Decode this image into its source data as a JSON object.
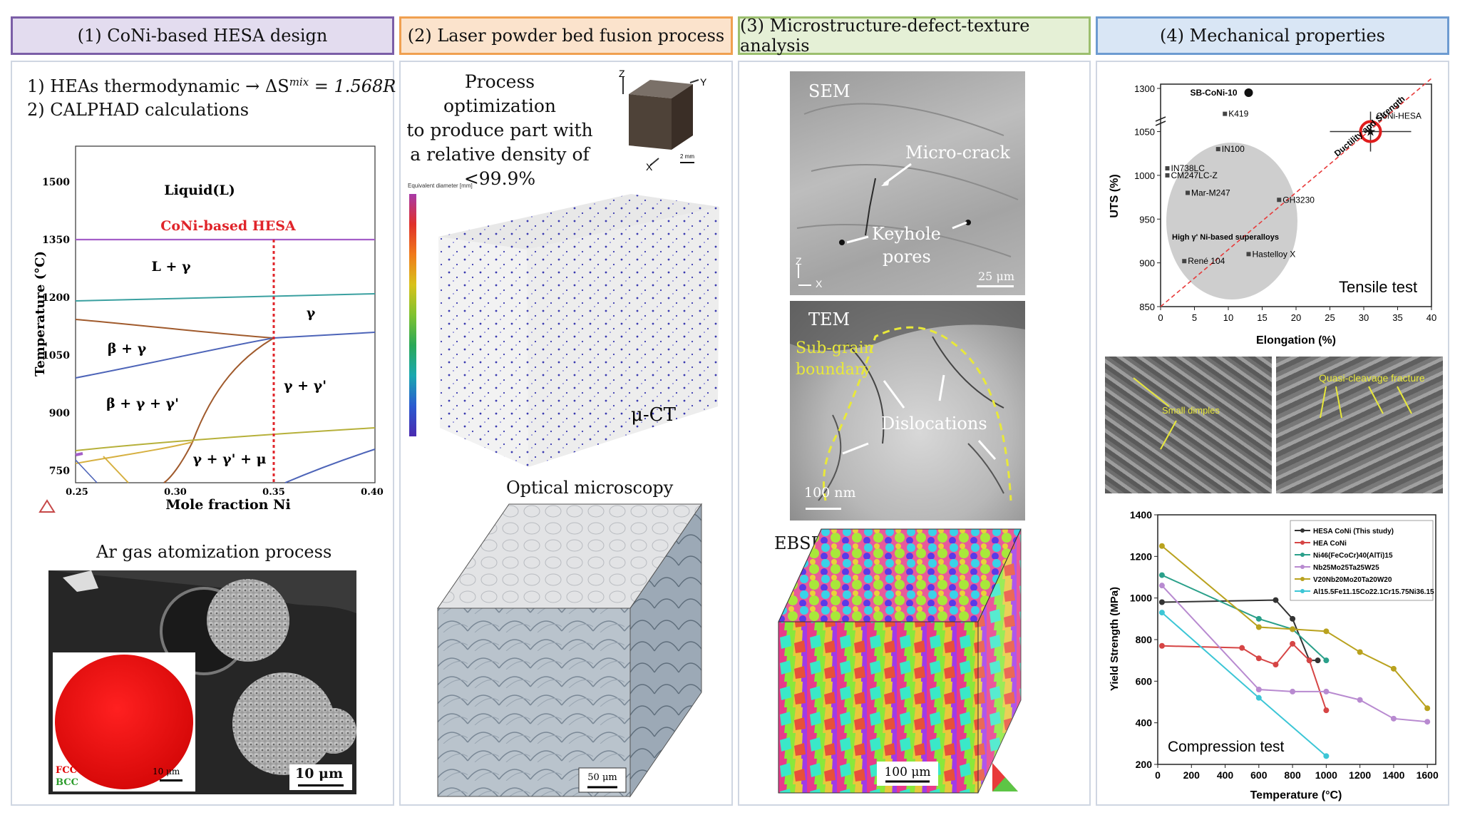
{
  "headers": {
    "h1": "(1) CoNi-based HESA design",
    "h2": "(2) Laser powder bed fusion process",
    "h3": "(3) Microstructure-defect-texture analysis",
    "h4": "(4) Mechanical properties"
  },
  "colors": {
    "h1": "#7b5ea7",
    "h1_bg": "#e3dcef",
    "h2": "#f0a050",
    "h2_bg": "#fbe3cc",
    "h3": "#9cbf6e",
    "h3_bg": "#e5f0d6",
    "h4": "#6d9bd1",
    "h4_bg": "#d9e6f5"
  },
  "panel1": {
    "line1": "1) HEAs thermodynamic → ΔS",
    "line1_sup": "mix",
    "line1_tail": " = 1.568R",
    "line2": "2) CALPHAD calculations",
    "phase": {
      "liquid": "Liquid(L)",
      "hesa": "CoNi-based HESA",
      "l_gamma": "L + γ",
      "gamma": "γ",
      "beta_gamma": "β + γ",
      "beta_gamma_gp": "β + γ + γ'",
      "gamma_gp": "γ + γ'",
      "gamma_gp_mu": "γ + γ' + μ",
      "ylabel": "Temperature (°C)",
      "xlabel": "Mole fraction Ni",
      "yticks": [
        "1500",
        "1350",
        "1200",
        "1050",
        "900",
        "750"
      ],
      "xticks": [
        "0.25",
        "0.30",
        "0.35",
        "0.40"
      ]
    },
    "atom_title": "Ar gas atomization process",
    "fcc": "FCC",
    "bcc": "BCC",
    "scale_inset": "10 μm",
    "scale_main": "10 μm"
  },
  "panel2": {
    "process_text": [
      "Process optimization",
      "to produce part with",
      "a relative density of",
      "<99.9%"
    ],
    "axes": {
      "z": "Z",
      "y": "Y",
      "x": "X"
    },
    "scale_small": "2 mm",
    "ct_label": "μ-CT",
    "colorbar_title": "Equivalent diameter [mm]",
    "optical_title": "Optical microscopy",
    "scale_optical": "50 μm"
  },
  "panel3": {
    "sem": "SEM",
    "micro_crack": "Micro-crack",
    "keyhole": "Keyhole",
    "pores": "pores",
    "scale_sem": "25 μm",
    "tem": "TEM",
    "subgrain": "Sub-grain",
    "boundary": "boundary",
    "dislocations": "Dislocations",
    "scale_tem": "100 nm",
    "ebsd": "EBSD",
    "scale_ebsd": "100 μm",
    "axis_z": "Z",
    "axis_x": "X"
  },
  "panel4": {
    "fract_label1": "Small dimples",
    "fract_label2": "Quasi-cleavage fracture"
  },
  "chart_data": [
    {
      "type": "scatter",
      "title": "Tensile test",
      "xlabel": "Elongation (%)",
      "ylabel": "UTS (%)",
      "xlim": [
        0,
        40
      ],
      "ylim": [
        850,
        1300
      ],
      "xticks": [
        "0",
        "5",
        "10",
        "15",
        "20",
        "25",
        "30",
        "35",
        "40"
      ],
      "yticks": [
        "850",
        "900",
        "950",
        "1000",
        "1050",
        "1300"
      ],
      "points": [
        {
          "label": "SB-CoNi-10",
          "x": 13,
          "y": 1290
        },
        {
          "label": "K419",
          "x": 9.5,
          "y": 1072
        },
        {
          "label": "IN100",
          "x": 8.5,
          "y": 1030
        },
        {
          "label": "IN738LC",
          "x": 1,
          "y": 1008
        },
        {
          "label": "CM247LC-Z",
          "x": 1,
          "y": 1000
        },
        {
          "label": "Mar-M247",
          "x": 4,
          "y": 980
        },
        {
          "label": "GH3230",
          "x": 17.5,
          "y": 972
        },
        {
          "label": "René 104",
          "x": 3.5,
          "y": 902
        },
        {
          "label": "Hastelloy X",
          "x": 13,
          "y": 910
        },
        {
          "label": "CoNi-HESA",
          "x": 31,
          "y": 1050
        }
      ],
      "annotations": {
        "region": "High γ' Ni-based superalloys",
        "trend": "Ductility and Strength"
      }
    },
    {
      "type": "line",
      "title": "Compression test",
      "xlabel": "Temperature (°C)",
      "ylabel": "Yield Strength (MPa)",
      "xlim": [
        0,
        1650
      ],
      "ylim": [
        200,
        1400
      ],
      "xticks": [
        "0",
        "200",
        "400",
        "600",
        "800",
        "1000",
        "1200",
        "1400",
        "1600"
      ],
      "yticks": [
        "200",
        "400",
        "600",
        "800",
        "1000",
        "1200",
        "1400"
      ],
      "series": [
        {
          "name": "HESA CoNi (This study)",
          "color": "#333333",
          "x": [
            25,
            700,
            800,
            900,
            950
          ],
          "y": [
            980,
            990,
            900,
            700,
            700
          ]
        },
        {
          "name": "HEA CoNi",
          "color": "#d64545",
          "x": [
            25,
            500,
            600,
            700,
            800,
            900,
            1000
          ],
          "y": [
            770,
            760,
            710,
            680,
            780,
            700,
            460
          ]
        },
        {
          "name": "Ni46(FeCoCr)40(AlTi)15",
          "color": "#2aa08a",
          "x": [
            25,
            600,
            800,
            1000
          ],
          "y": [
            1110,
            900,
            850,
            700
          ]
        },
        {
          "name": "Nb25Mo25Ta25W25",
          "color": "#b88ad0",
          "x": [
            25,
            600,
            800,
            1000,
            1200,
            1400,
            1600
          ],
          "y": [
            1060,
            560,
            550,
            550,
            510,
            420,
            405
          ]
        },
        {
          "name": "V20Nb20Mo20Ta20W20",
          "color": "#b9a21e",
          "x": [
            25,
            600,
            800,
            1000,
            1200,
            1400,
            1600
          ],
          "y": [
            1250,
            860,
            850,
            840,
            740,
            660,
            470
          ]
        },
        {
          "name": "Al15.5Fe11.15Co22.1Cr15.75Ni36.15",
          "color": "#3cc6d6",
          "x": [
            25,
            600,
            1000
          ],
          "y": [
            930,
            520,
            240
          ]
        }
      ]
    }
  ]
}
